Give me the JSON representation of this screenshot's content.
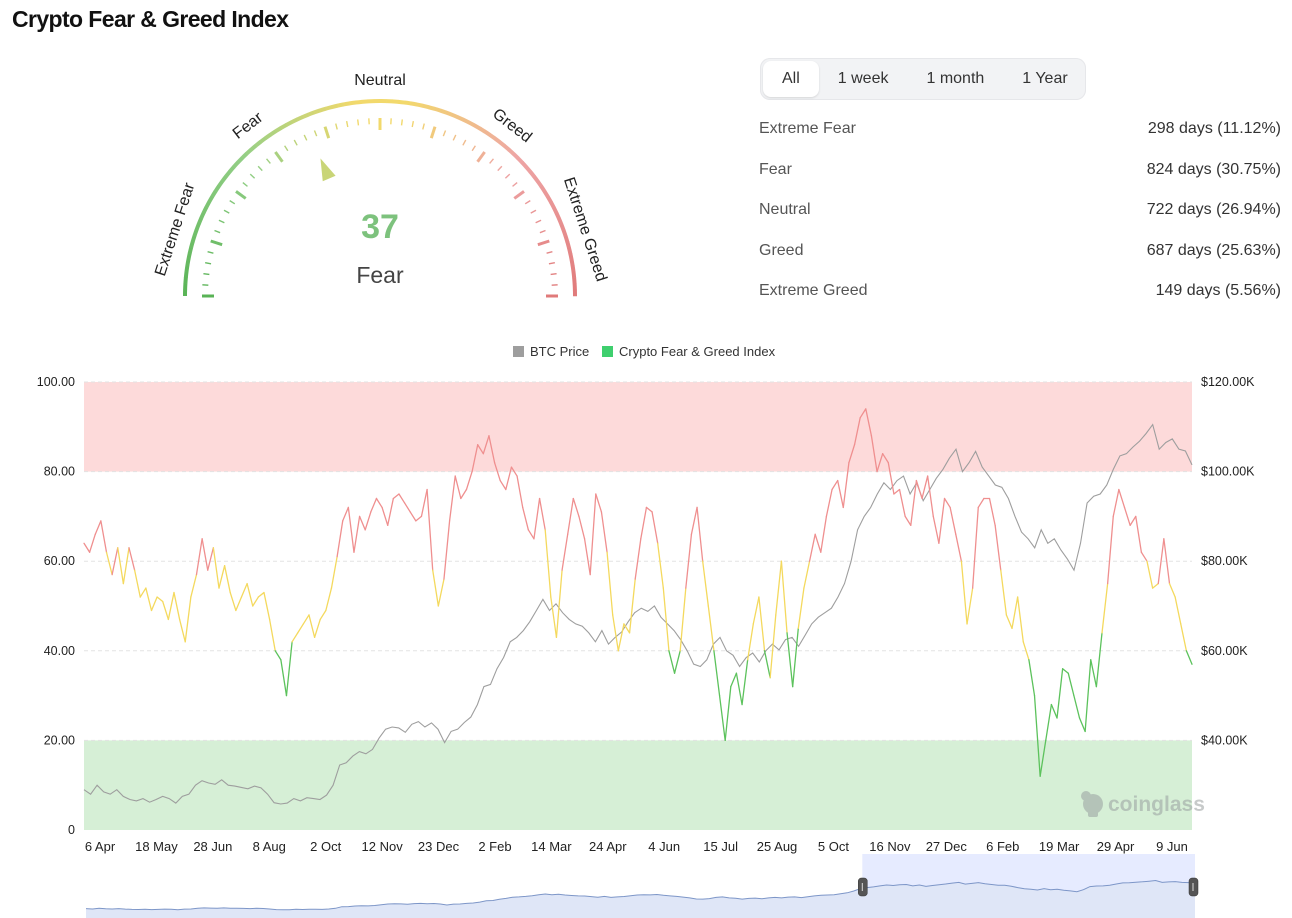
{
  "page": {
    "title": "Crypto Fear & Greed Index"
  },
  "gauge": {
    "value": "37",
    "status": "Fear",
    "value_color": "#7dc27d",
    "zone_labels": [
      "Extreme Fear",
      "Fear",
      "Neutral",
      "Greed",
      "Extreme Greed"
    ],
    "zone_colors": {
      "extreme_fear": "#59b356",
      "fear": "#93cf86",
      "neutral": "#f2d96c",
      "greed": "#eea5a5",
      "extreme_greed": "#e07a7a"
    }
  },
  "range_tabs": [
    {
      "label": "All",
      "active": true
    },
    {
      "label": "1 week",
      "active": false
    },
    {
      "label": "1 month",
      "active": false
    },
    {
      "label": "1 Year",
      "active": false
    }
  ],
  "stats": [
    {
      "label": "Extreme Fear",
      "value": "298 days (11.12%)"
    },
    {
      "label": "Fear",
      "value": "824 days (30.75%)"
    },
    {
      "label": "Neutral",
      "value": "722 days (26.94%)"
    },
    {
      "label": "Greed",
      "value": "687 days (25.63%)"
    },
    {
      "label": "Extreme Greed",
      "value": "149 days (5.56%)"
    }
  ],
  "chart_data": {
    "type": "line",
    "legend": [
      {
        "name": "BTC Price",
        "color": "#9e9e9e"
      },
      {
        "name": "Crypto Fear & Greed Index",
        "color": "#3fcf6e"
      }
    ],
    "legend_position": "top-center",
    "watermark": "coinglass",
    "x_ticks": [
      "6 Apr",
      "18 May",
      "28 Jun",
      "8 Aug",
      "2 Oct",
      "12 Nov",
      "23 Dec",
      "2 Feb",
      "14 Mar",
      "24 Apr",
      "4 Jun",
      "15 Jul",
      "25 Aug",
      "5 Oct",
      "16 Nov",
      "27 Dec",
      "6 Feb",
      "19 Mar",
      "29 Apr",
      "9 Jun"
    ],
    "y_left": {
      "ticks": [
        "0",
        "20.00",
        "40.00",
        "60.00",
        "80.00",
        "100.00"
      ],
      "range": [
        0,
        100
      ]
    },
    "y_right": {
      "ticks": [
        "$40.00K",
        "$60.00K",
        "$80.00K",
        "$100.00K",
        "$120.00K"
      ],
      "range": [
        20000,
        120000
      ]
    },
    "bands": [
      {
        "from": 80,
        "to": 100,
        "color": "#fddada"
      },
      {
        "from": 0,
        "to": 20,
        "color": "#d6efd6"
      }
    ],
    "grid": "dashed horizontal",
    "series": [
      {
        "name": "Crypto Fear & Greed Index",
        "colors_by_value": {
          "above_60": "#ef8f8f",
          "40_to_60": "#f4d95e",
          "below_40": "#5cc25c"
        },
        "values": [
          64,
          62,
          66,
          69,
          62,
          57,
          63,
          55,
          63,
          58,
          52,
          54,
          49,
          52,
          51,
          47,
          53,
          47,
          42,
          52,
          57,
          65,
          58,
          63,
          54,
          59,
          53,
          49,
          52,
          55,
          50,
          52,
          53,
          47,
          40,
          38,
          30,
          42,
          44,
          46,
          48,
          43,
          47,
          49,
          54,
          61,
          69,
          72,
          62,
          70,
          67,
          71,
          74,
          72,
          68,
          74,
          75,
          73,
          71,
          69,
          70,
          76,
          58,
          50,
          56,
          69,
          79,
          74,
          76,
          80,
          86,
          84,
          88,
          82,
          78,
          76,
          81,
          79,
          72,
          67,
          65,
          74,
          67,
          52,
          43,
          58,
          66,
          74,
          70,
          65,
          57,
          75,
          71,
          62,
          48,
          40,
          46,
          44,
          56,
          65,
          72,
          71,
          64,
          54,
          40,
          35,
          40,
          54,
          66,
          72,
          60,
          50,
          40,
          30,
          20,
          32,
          35,
          28,
          38,
          46,
          52,
          40,
          34,
          48,
          60,
          44,
          32,
          45,
          54,
          60,
          66,
          62,
          70,
          76,
          78,
          72,
          82,
          86,
          92,
          94,
          88,
          80,
          84,
          82,
          75,
          76,
          70,
          68,
          78,
          74,
          79,
          70,
          64,
          74,
          72,
          66,
          60,
          46,
          54,
          72,
          74,
          74,
          68,
          58,
          48,
          45,
          52,
          42,
          38,
          30,
          12,
          20,
          28,
          25,
          36,
          35,
          30,
          25,
          22,
          38,
          32,
          44,
          55,
          70,
          76,
          72,
          68,
          70,
          62,
          60,
          54,
          55,
          65,
          55,
          52,
          46,
          40,
          37
        ]
      },
      {
        "name": "BTC Price",
        "color": "#9e9e9e",
        "values": [
          29000,
          28000,
          30000,
          28500,
          28000,
          29000,
          27500,
          26800,
          26500,
          27000,
          26200,
          26800,
          27500,
          27000,
          26000,
          27500,
          28000,
          30000,
          31000,
          30500,
          30200,
          31200,
          30000,
          29800,
          29500,
          29200,
          29800,
          29400,
          28000,
          26100,
          25800,
          26000,
          27000,
          26500,
          27200,
          27000,
          26800,
          27800,
          30000,
          34500,
          35000,
          36500,
          37500,
          37000,
          38000,
          40500,
          42500,
          43000,
          42800,
          41800,
          43600,
          44200,
          43000,
          43900,
          42500,
          39500,
          42000,
          42500,
          44000,
          45200,
          48000,
          52000,
          52500,
          56000,
          58500,
          62000,
          63000,
          64500,
          66500,
          69000,
          71500,
          69000,
          70500,
          68500,
          67000,
          66000,
          65500,
          64000,
          62000,
          64500,
          61500,
          63000,
          64200,
          66500,
          68500,
          69500,
          68800,
          70000,
          67500,
          66000,
          64500,
          62500,
          60000,
          57000,
          56500,
          58000,
          61500,
          63000,
          60000,
          59000,
          56500,
          58500,
          59500,
          57500,
          60000,
          61500,
          60200,
          62500,
          63000,
          61000,
          63500,
          66000,
          67500,
          68500,
          69500,
          72000,
          75000,
          80000,
          87000,
          90000,
          92000,
          95000,
          97500,
          96000,
          98000,
          99000,
          95000,
          97500,
          93500,
          96000,
          98500,
          100500,
          103000,
          105000,
          100000,
          102000,
          104500,
          101000,
          99000,
          97000,
          96500,
          94000,
          90000,
          86500,
          85000,
          83000,
          87000,
          84000,
          85000,
          82500,
          80500,
          78000,
          84000,
          93000,
          94500,
          95000,
          97000,
          100500,
          103500,
          104000,
          105500,
          106800,
          108500,
          110500,
          105000,
          106500,
          107300,
          105000,
          104600,
          101500
        ],
        "x_start_fraction": 0.0
      }
    ]
  },
  "navigator": {
    "selected_from_fraction": 0.7,
    "selected_to_fraction": 1.0
  }
}
